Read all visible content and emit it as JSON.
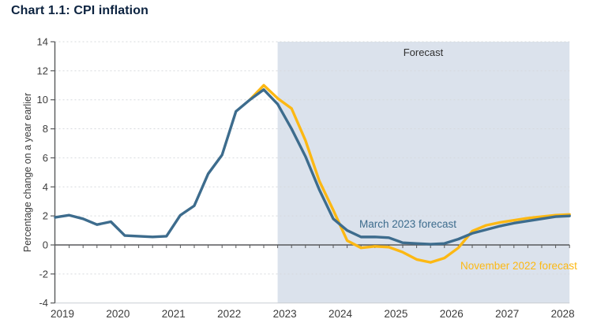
{
  "header": {
    "title": "Chart 1.1: CPI inflation"
  },
  "chart_data": {
    "type": "line",
    "title": "Chart 1.1: CPI inflation",
    "xlabel": "",
    "ylabel": "Percentage change on a year earlier",
    "ylim": [
      -4,
      14
    ],
    "ytick_values": [
      14,
      12,
      10,
      8,
      6,
      4,
      2,
      0,
      -2,
      -4
    ],
    "x_tick_years": [
      "2019",
      "2020",
      "2021",
      "2022",
      "2023",
      "2024",
      "2025",
      "2026",
      "2027",
      "2028"
    ],
    "x_start": 2019.0,
    "x_end": 2028.25,
    "x_minor_tick_step_years": 0.25,
    "grid": "horizontal dotted gridlines at every labelled tick",
    "legend_position": "inline labels next to lines",
    "forecast_region": {
      "label": "Forecast",
      "start_year": 2023.0,
      "fill": "#dbe2ec"
    },
    "axis_color": "#58595b",
    "text_color": "#3c3c3c",
    "series": [
      {
        "name": "November 2022 forecast",
        "color": "#fcb813",
        "start": 2022.5,
        "step": 0.25,
        "values": [
          10.0,
          11.0,
          10.1,
          9.4,
          7.2,
          4.4,
          2.4,
          0.3,
          -0.2,
          -0.1,
          -0.15,
          -0.5,
          -1.0,
          -1.2,
          -0.9,
          -0.2,
          0.95,
          1.35,
          1.55,
          1.7,
          1.85,
          1.95,
          2.05,
          2.1
        ]
      },
      {
        "name": "March 2023 forecast",
        "color": "#3d6c8d",
        "start": 2019.0,
        "step": 0.25,
        "values": [
          1.9,
          2.05,
          1.8,
          1.4,
          1.6,
          0.65,
          0.6,
          0.55,
          0.6,
          2.05,
          2.7,
          4.9,
          6.2,
          9.2,
          10.0,
          10.7,
          9.7,
          8.0,
          6.1,
          3.8,
          1.8,
          1.0,
          0.55,
          0.55,
          0.5,
          0.15,
          0.1,
          0.05,
          0.1,
          0.4,
          0.8,
          1.05,
          1.3,
          1.5,
          1.65,
          1.8,
          1.95,
          2.0
        ]
      }
    ]
  }
}
